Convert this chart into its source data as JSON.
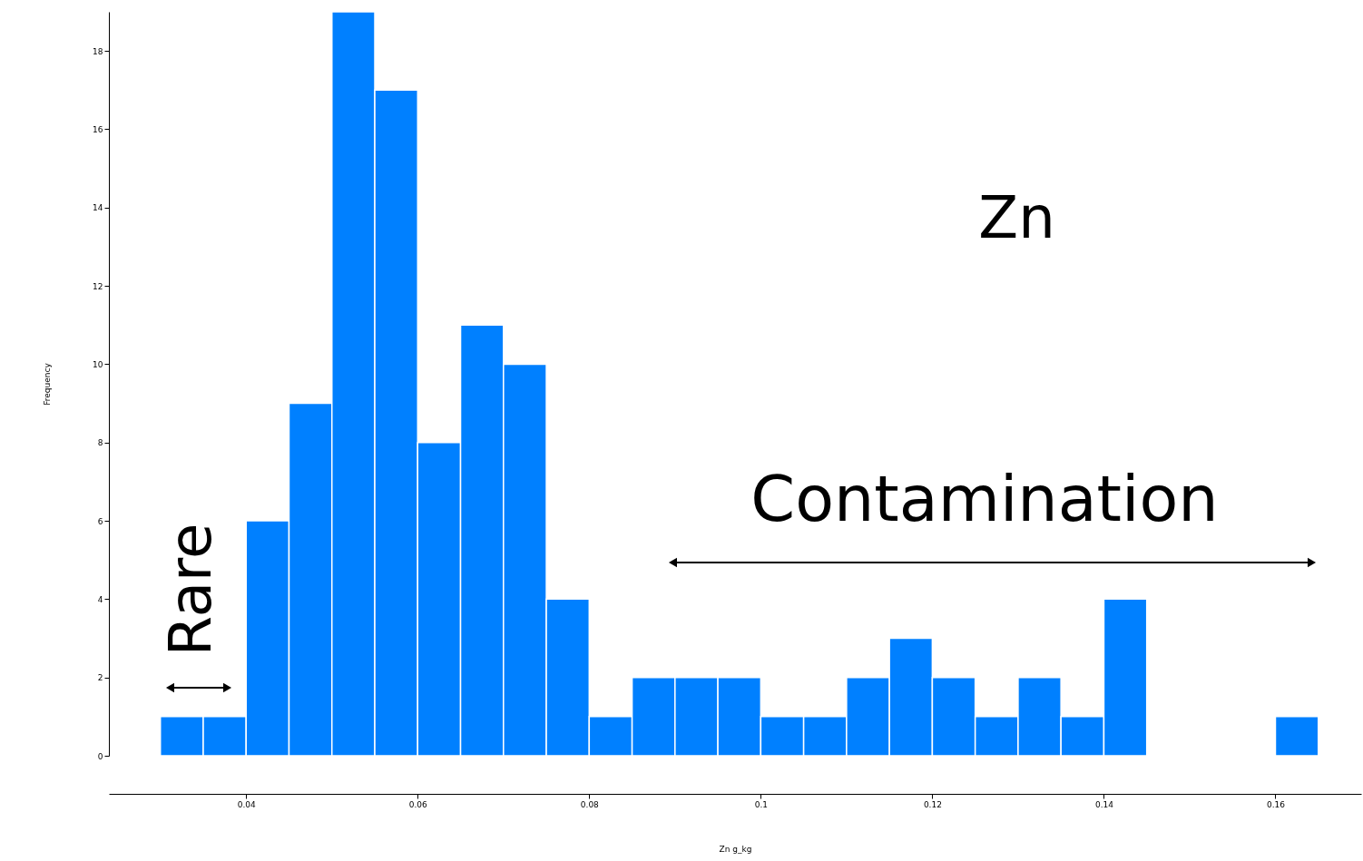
{
  "chart_data": {
    "type": "histogram",
    "xlabel": "Zn g_kg",
    "ylabel": "Frequency",
    "bins": [
      0.03,
      0.035,
      0.04,
      0.045,
      0.05,
      0.055,
      0.06,
      0.065,
      0.07,
      0.075,
      0.08,
      0.085,
      0.09,
      0.095,
      0.1,
      0.105,
      0.11,
      0.115,
      0.12,
      0.125,
      0.13,
      0.135,
      0.14,
      0.145,
      0.15,
      0.155,
      0.16,
      0.165
    ],
    "values": [
      1,
      1,
      6,
      9,
      19,
      17,
      8,
      11,
      10,
      4,
      1,
      2,
      2,
      2,
      1,
      1,
      2,
      3,
      2,
      1,
      2,
      1,
      4,
      0,
      0,
      0,
      1
    ],
    "color": "#0080ff",
    "xlim": [
      0.024,
      0.17
    ],
    "xticks": [
      0.04,
      0.06,
      0.08,
      0.1,
      0.12,
      0.14,
      0.16
    ],
    "ylim": [
      0,
      19
    ],
    "yticks": [
      0,
      2,
      4,
      6,
      8,
      10,
      12,
      14,
      16,
      18
    ],
    "grid": false,
    "annotations": [
      "Zn",
      "Contamination",
      "Rare"
    ]
  }
}
